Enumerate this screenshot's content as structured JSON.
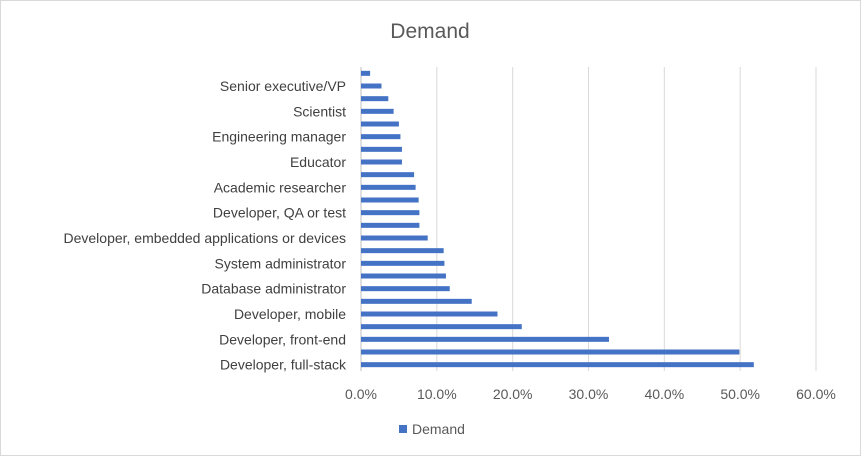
{
  "chart_data": {
    "type": "bar",
    "orientation": "horizontal",
    "title": "Demand",
    "xlim": [
      0,
      0.6
    ],
    "x_ticks": [
      "0.0%",
      "10.0%",
      "20.0%",
      "30.0%",
      "40.0%",
      "50.0%",
      "60.0%"
    ],
    "grid": true,
    "legend_position": "bottom",
    "categories": [
      "Developer, full-stack",
      "",
      "Developer, front-end",
      "",
      "Developer, mobile",
      "",
      "Database administrator",
      "",
      "System administrator",
      "",
      "Developer, embedded applications or devices",
      "",
      "Developer, QA or test",
      "",
      "Academic researcher",
      "",
      "Educator",
      "",
      "Engineering manager",
      "",
      "Scientist",
      "",
      "Senior executive/VP",
      ""
    ],
    "series": [
      {
        "name": "Demand",
        "color": "#4472c4",
        "values": [
          0.518,
          0.499,
          0.327,
          0.212,
          0.18,
          0.146,
          0.117,
          0.112,
          0.11,
          0.109,
          0.088,
          0.077,
          0.077,
          0.076,
          0.072,
          0.07,
          0.054,
          0.054,
          0.052,
          0.05,
          0.043,
          0.036,
          0.027,
          0.012
        ]
      }
    ]
  }
}
